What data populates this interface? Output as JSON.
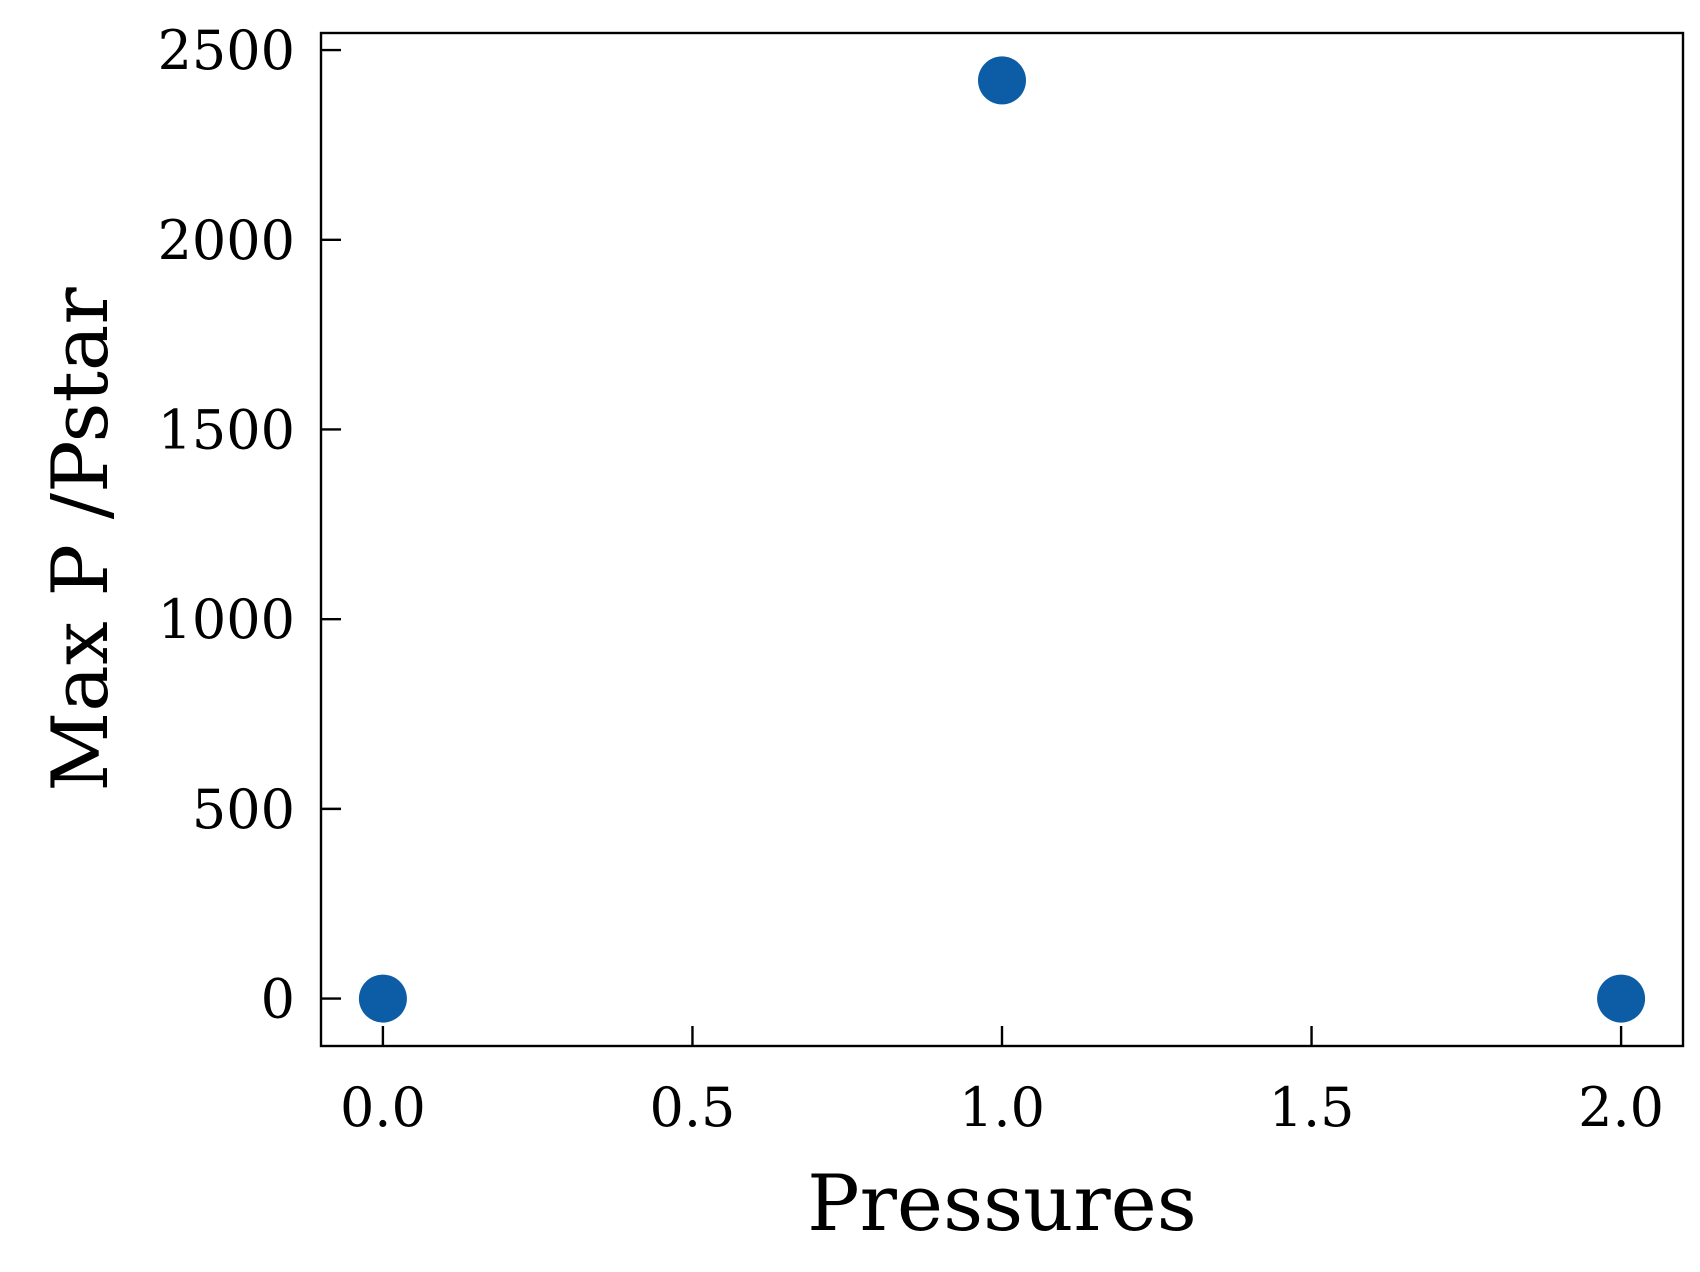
{
  "chart_data": {
    "type": "scatter",
    "title": "",
    "xlabel": "Pressures",
    "ylabel": "Max P /Pstar",
    "xlim": [
      -0.1,
      2.1
    ],
    "ylim": [
      -125,
      2545
    ],
    "xticks": [
      0.0,
      0.5,
      1.0,
      1.5,
      2.0
    ],
    "xtick_labels": [
      "0.0",
      "0.5",
      "1.0",
      "1.5",
      "2.0"
    ],
    "yticks": [
      0,
      500,
      1000,
      1500,
      2000,
      2500
    ],
    "ytick_labels": [
      "0",
      "500",
      "1000",
      "1500",
      "2000",
      "2500"
    ],
    "grid": false,
    "legend": false,
    "series": [
      {
        "color": "#0c5da5",
        "x": [
          0.0,
          1.0,
          2.0
        ],
        "y": [
          0,
          2420,
          0
        ]
      }
    ]
  }
}
